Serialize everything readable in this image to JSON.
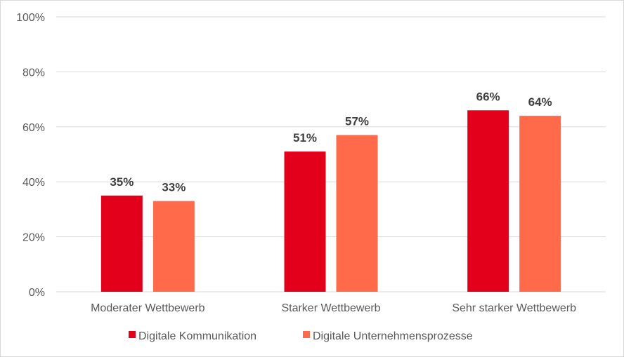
{
  "chart_data": {
    "type": "bar",
    "categories": [
      "Moderater Wettbewerb",
      "Starker Wettbewerb",
      "Sehr starker Wettbewerb"
    ],
    "series": [
      {
        "name": "Digitale Kommunikation",
        "values": [
          35,
          51,
          66
        ],
        "labels": [
          "35%",
          "51%",
          "66%"
        ],
        "color": "#E2001A"
      },
      {
        "name": "Digitale Unternehmensprozesse",
        "values": [
          33,
          57,
          64
        ],
        "labels": [
          "33%",
          "57%",
          "64%"
        ],
        "color": "#FF6A4A"
      }
    ],
    "ylim": [
      0,
      100
    ],
    "yticks": [
      0,
      20,
      40,
      60,
      80,
      100
    ],
    "ytick_labels": [
      "0%",
      "20%",
      "40%",
      "60%",
      "80%",
      "100%"
    ],
    "grid": true,
    "legend": "bottom",
    "title": "",
    "xlabel": "",
    "ylabel": ""
  }
}
